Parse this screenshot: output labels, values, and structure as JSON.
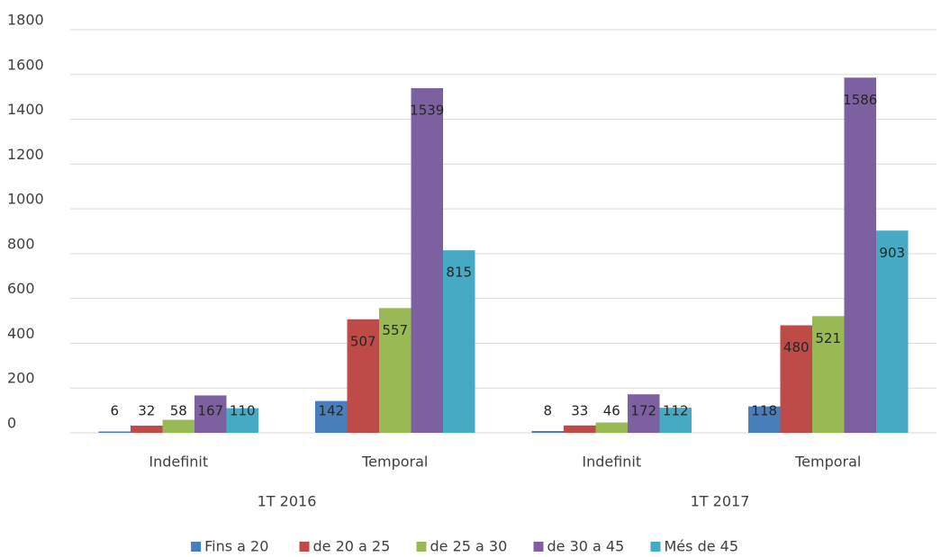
{
  "chart_data": {
    "type": "bar",
    "categories": [
      "Indefinit",
      "Temporal",
      "Indefinit",
      "Temporal"
    ],
    "groups": [
      "1T 2016",
      "1T 2017"
    ],
    "series": [
      {
        "name": "Fins a 20",
        "color": "#4a7ebb",
        "values": [
          6,
          142,
          8,
          118
        ]
      },
      {
        "name": "de 20 a 25",
        "color": "#be4b48",
        "values": [
          32,
          507,
          33,
          480
        ]
      },
      {
        "name": "de 25 a 30",
        "color": "#98b954",
        "values": [
          58,
          557,
          46,
          521
        ]
      },
      {
        "name": "de 30 a 45",
        "color": "#7d60a0",
        "values": [
          167,
          1539,
          172,
          1586
        ]
      },
      {
        "name": "Més de 45",
        "color": "#46aac5",
        "values": [
          110,
          815,
          112,
          903
        ]
      }
    ],
    "ylim": [
      0,
      1800
    ],
    "yticks": [
      0,
      200,
      400,
      600,
      800,
      1000,
      1200,
      1400,
      1600,
      1800
    ],
    "grid": true,
    "legend": "bottom"
  }
}
